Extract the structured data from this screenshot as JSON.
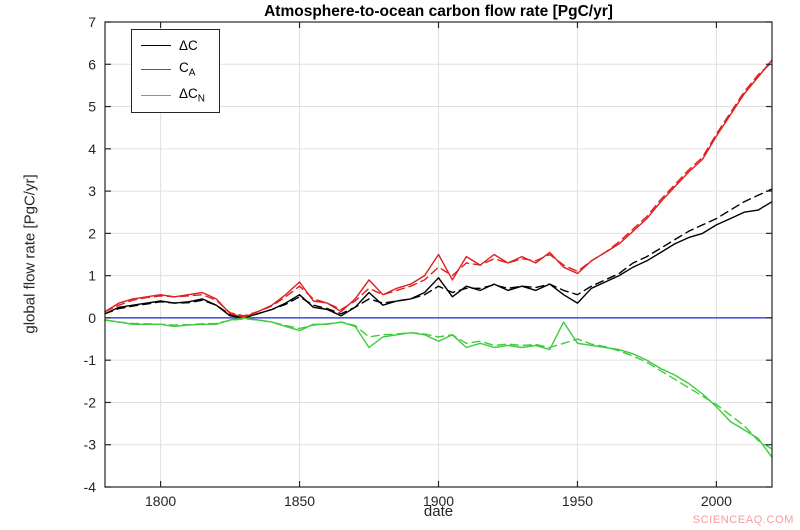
{
  "title": "Atmosphere-to-ocean carbon flow rate [PgC/yr]",
  "xlabel": "date",
  "ylabel": "global flow rate [PgC/yr]",
  "watermark": "SCIENCEAQ.COM",
  "legend": {
    "items": [
      {
        "id": "delta-c",
        "text": "ΔC",
        "sub": "",
        "color": "#000000"
      },
      {
        "id": "c-a",
        "text": "C",
        "sub": "A",
        "color": "#e02020"
      },
      {
        "id": "delta-c-n",
        "text": "ΔC",
        "sub": "N",
        "color": "#3ecb3e"
      }
    ]
  },
  "chart_data": {
    "type": "line",
    "title": "Atmosphere-to-ocean carbon flow rate [PgC/yr]",
    "xlabel": "date",
    "ylabel": "global flow rate [PgC/yr]",
    "xlim": [
      1780,
      2020
    ],
    "ylim": [
      -4,
      7
    ],
    "xticks": [
      1800,
      1850,
      1900,
      1950,
      2000
    ],
    "yticks": [
      -4,
      -3,
      -2,
      -1,
      0,
      1,
      2,
      3,
      4,
      5,
      6,
      7
    ],
    "grid": true,
    "grid_color": "#e0e0e0",
    "axis_color": "#262626",
    "legend_position": "top-left",
    "legend_items": [
      "ΔC",
      "C_A",
      "ΔC_N"
    ],
    "zero_line": {
      "y": 0,
      "color": "#2222dd"
    },
    "x": [
      1780,
      1785,
      1790,
      1795,
      1800,
      1805,
      1810,
      1815,
      1820,
      1825,
      1830,
      1835,
      1840,
      1845,
      1850,
      1855,
      1860,
      1865,
      1870,
      1875,
      1880,
      1885,
      1890,
      1895,
      1900,
      1905,
      1910,
      1915,
      1920,
      1925,
      1930,
      1935,
      1940,
      1945,
      1950,
      1955,
      1960,
      1965,
      1970,
      1975,
      1980,
      1985,
      1990,
      1995,
      2000,
      2005,
      2010,
      2015,
      2020
    ],
    "series": [
      {
        "id": "delta-c-solid",
        "name": "ΔC (solid)",
        "color": "#000000",
        "dash": "solid",
        "values": [
          0.1,
          0.25,
          0.3,
          0.35,
          0.4,
          0.35,
          0.38,
          0.45,
          0.3,
          0.05,
          0.0,
          0.1,
          0.2,
          0.35,
          0.55,
          0.25,
          0.2,
          0.05,
          0.25,
          0.6,
          0.3,
          0.4,
          0.45,
          0.6,
          0.95,
          0.5,
          0.75,
          0.65,
          0.8,
          0.65,
          0.75,
          0.65,
          0.8,
          0.55,
          0.35,
          0.7,
          0.85,
          1.0,
          1.2,
          1.35,
          1.55,
          1.75,
          1.9,
          2.0,
          2.2,
          2.35,
          2.5,
          2.55,
          2.75
        ]
      },
      {
        "id": "delta-c-dashed",
        "name": "ΔC (dashed)",
        "color": "#000000",
        "dash": "dashed",
        "values": [
          0.1,
          0.22,
          0.28,
          0.33,
          0.38,
          0.35,
          0.36,
          0.42,
          0.3,
          0.08,
          0.02,
          0.1,
          0.2,
          0.32,
          0.5,
          0.3,
          0.22,
          0.1,
          0.25,
          0.45,
          0.35,
          0.4,
          0.45,
          0.55,
          0.75,
          0.6,
          0.7,
          0.7,
          0.78,
          0.7,
          0.75,
          0.72,
          0.8,
          0.65,
          0.55,
          0.75,
          0.9,
          1.05,
          1.3,
          1.45,
          1.65,
          1.85,
          2.05,
          2.2,
          2.35,
          2.55,
          2.75,
          2.9,
          3.05
        ]
      },
      {
        "id": "c-a-solid",
        "name": "C_A (solid)",
        "color": "#e02020",
        "dash": "solid",
        "values": [
          0.15,
          0.35,
          0.45,
          0.5,
          0.55,
          0.5,
          0.55,
          0.6,
          0.45,
          0.1,
          0.02,
          0.15,
          0.3,
          0.55,
          0.85,
          0.4,
          0.35,
          0.15,
          0.45,
          0.9,
          0.55,
          0.7,
          0.8,
          1.0,
          1.5,
          0.9,
          1.45,
          1.25,
          1.5,
          1.3,
          1.45,
          1.3,
          1.55,
          1.2,
          1.05,
          1.35,
          1.55,
          1.75,
          2.05,
          2.35,
          2.75,
          3.1,
          3.45,
          3.75,
          4.3,
          4.8,
          5.3,
          5.7,
          6.1
        ]
      },
      {
        "id": "c-a-dashed",
        "name": "C_A (dashed)",
        "color": "#e02020",
        "dash": "dashed",
        "values": [
          0.15,
          0.3,
          0.42,
          0.48,
          0.52,
          0.5,
          0.52,
          0.55,
          0.42,
          0.12,
          0.05,
          0.15,
          0.28,
          0.5,
          0.75,
          0.45,
          0.35,
          0.2,
          0.4,
          0.7,
          0.55,
          0.65,
          0.75,
          0.9,
          1.2,
          1.0,
          1.3,
          1.25,
          1.4,
          1.3,
          1.4,
          1.35,
          1.5,
          1.25,
          1.1,
          1.35,
          1.55,
          1.8,
          2.1,
          2.4,
          2.8,
          3.15,
          3.5,
          3.8,
          4.35,
          4.85,
          5.35,
          5.75,
          6.05
        ]
      },
      {
        "id": "delta-c-n-solid",
        "name": "ΔC_N (solid)",
        "color": "#3ecb3e",
        "dash": "solid",
        "values": [
          -0.05,
          -0.1,
          -0.15,
          -0.15,
          -0.15,
          -0.2,
          -0.17,
          -0.15,
          -0.15,
          -0.05,
          0.0,
          -0.05,
          -0.1,
          -0.2,
          -0.3,
          -0.15,
          -0.15,
          -0.1,
          -0.2,
          -0.7,
          -0.45,
          -0.4,
          -0.35,
          -0.4,
          -0.55,
          -0.4,
          -0.7,
          -0.6,
          -0.7,
          -0.65,
          -0.7,
          -0.65,
          -0.75,
          -0.1,
          -0.6,
          -0.65,
          -0.7,
          -0.75,
          -0.85,
          -1.0,
          -1.2,
          -1.35,
          -1.55,
          -1.8,
          -2.1,
          -2.45,
          -2.65,
          -2.85,
          -3.3
        ]
      },
      {
        "id": "delta-c-n-dashed",
        "name": "ΔC_N (dashed)",
        "color": "#3ecb3e",
        "dash": "dashed",
        "values": [
          -0.05,
          -0.1,
          -0.13,
          -0.14,
          -0.15,
          -0.17,
          -0.16,
          -0.14,
          -0.13,
          -0.06,
          -0.02,
          -0.05,
          -0.1,
          -0.18,
          -0.25,
          -0.17,
          -0.14,
          -0.1,
          -0.18,
          -0.45,
          -0.4,
          -0.38,
          -0.35,
          -0.38,
          -0.45,
          -0.4,
          -0.6,
          -0.55,
          -0.65,
          -0.62,
          -0.65,
          -0.63,
          -0.7,
          -0.6,
          -0.5,
          -0.62,
          -0.68,
          -0.78,
          -0.9,
          -1.05,
          -1.25,
          -1.45,
          -1.65,
          -1.85,
          -2.05,
          -2.3,
          -2.55,
          -2.9,
          -3.1
        ]
      }
    ]
  }
}
